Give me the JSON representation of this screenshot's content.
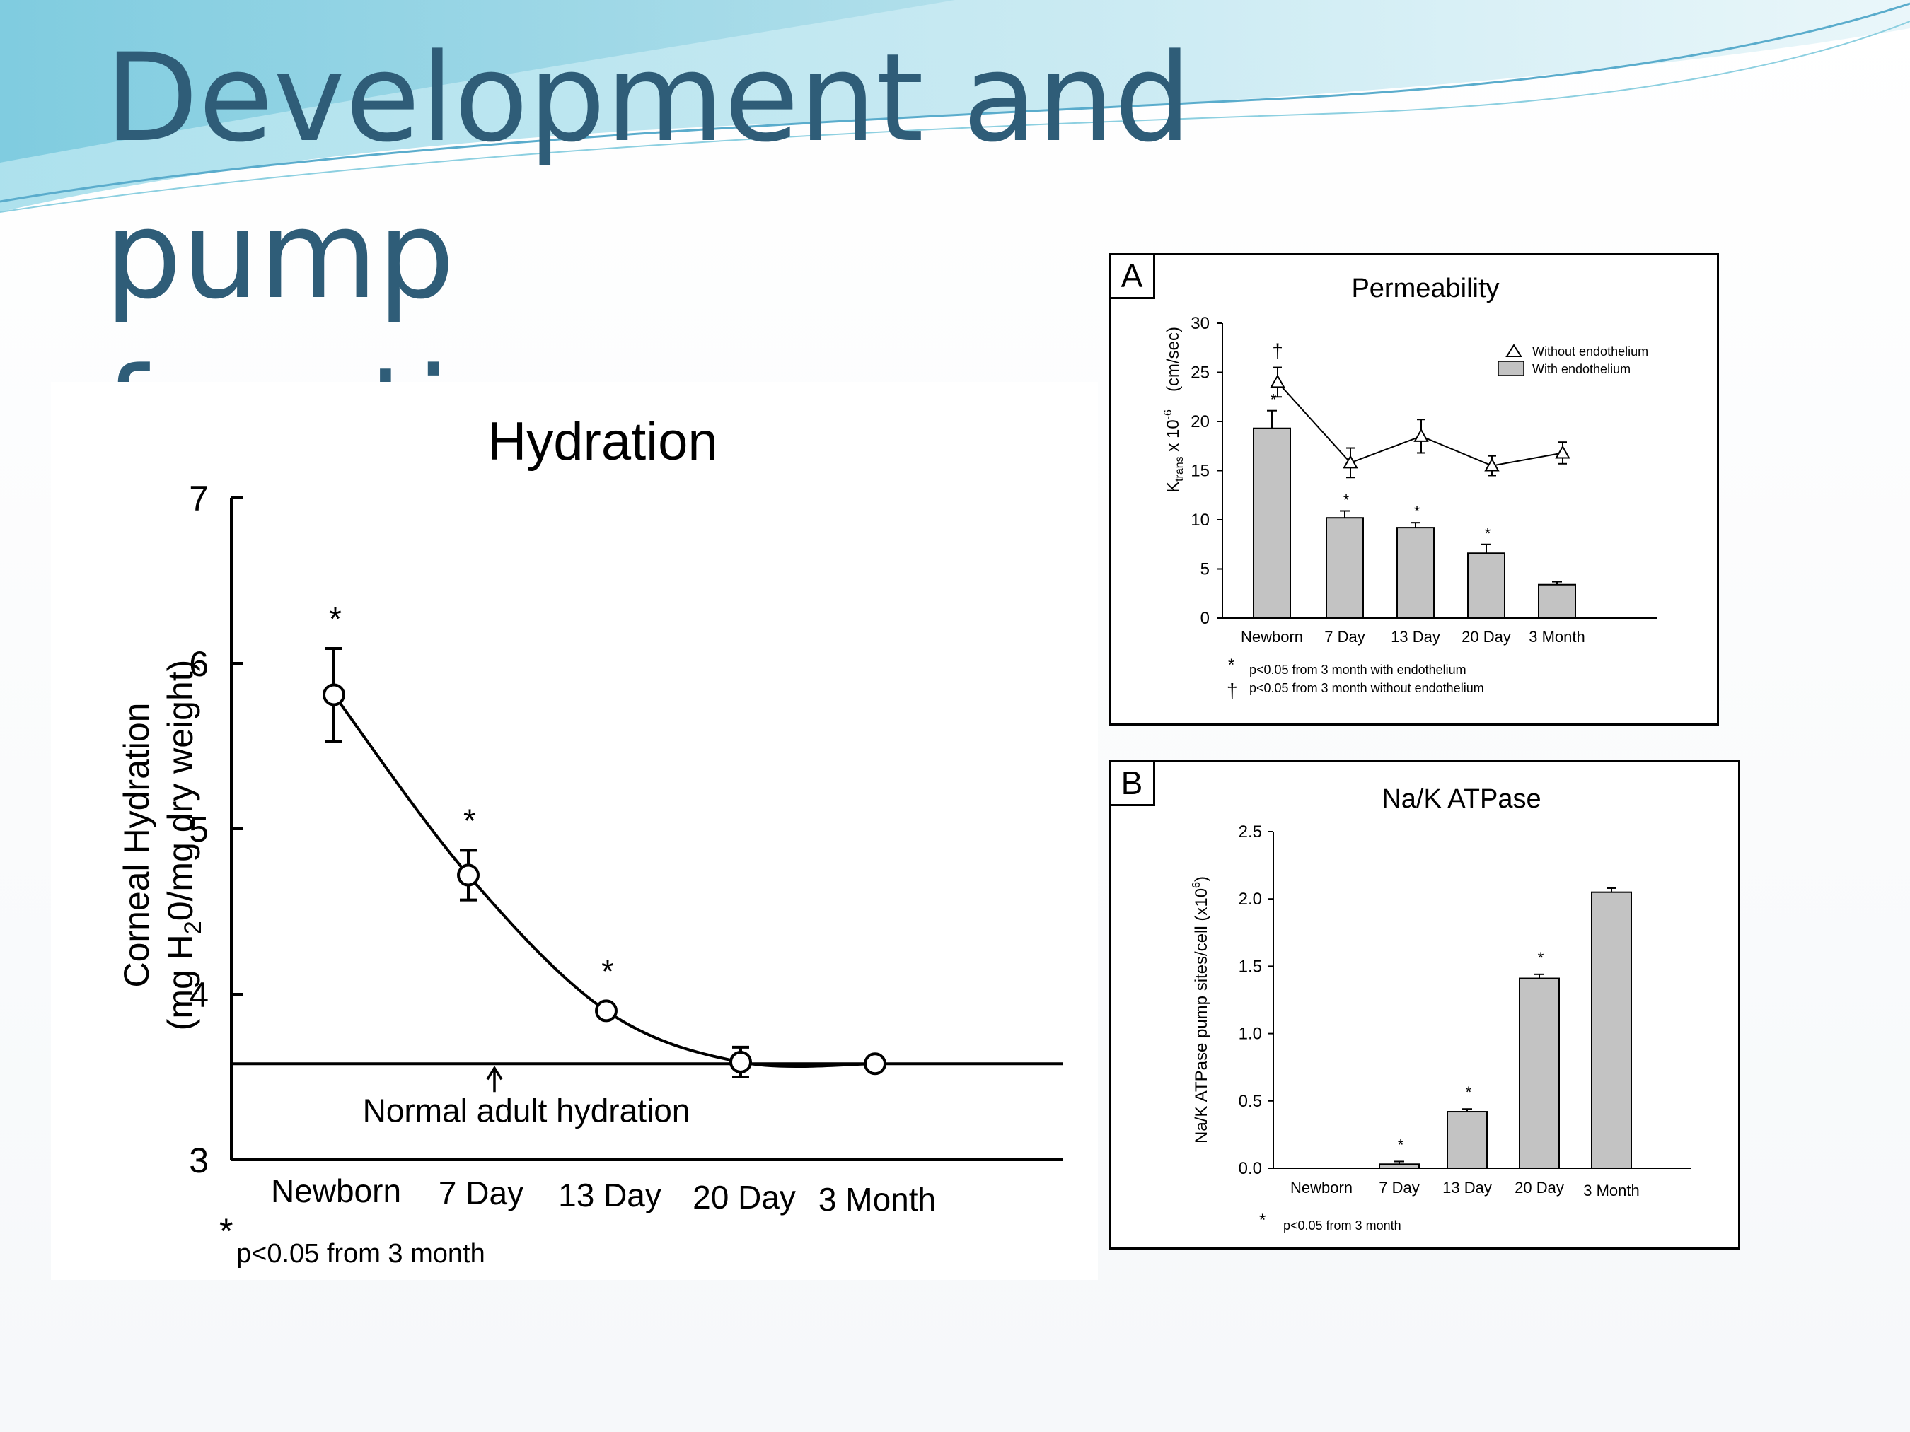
{
  "slide": {
    "title_line1": "Development and pump",
    "title_line2": "function",
    "colors": {
      "title": "#2f5d78",
      "bar_fill": "#c3c3c3",
      "deco_light": "#bfe6f0",
      "deco_dark": "#5aaccc"
    }
  },
  "chart_data": [
    {
      "type": "line",
      "title": "Hydration",
      "ylabel_line1": "Corneal Hydration",
      "ylabel_line2_pre": "(mg H",
      "ylabel_line2_sub": "2",
      "ylabel_line2_post": "0/mg dry weight)",
      "categories": [
        "Newborn",
        "7 Day",
        "13 Day",
        "20 Day",
        "3 Month"
      ],
      "values": [
        5.81,
        4.72,
        3.9,
        3.59,
        3.58
      ],
      "errors": [
        0.28,
        0.15,
        0,
        0.09,
        0
      ],
      "significant": [
        "*",
        "*",
        "*",
        "",
        ""
      ],
      "ylim": [
        3,
        7
      ],
      "yticks": [
        "3",
        "4",
        "5",
        "6",
        "7"
      ],
      "reference_value": 3.58,
      "reference_label": "Normal adult hydration",
      "footnote_symbol": "*",
      "footnote_text": "p<0.05 from 3 month"
    },
    {
      "type": "bar",
      "panel_label": "A",
      "title": "Permeability",
      "ylabel_main": "K",
      "ylabel_sub": "trans",
      "ylabel_mid": " x 10",
      "ylabel_sup": "-6",
      "ylabel_unit": "(cm/sec)",
      "categories": [
        "Newborn",
        "7 Day",
        "13 Day",
        "20 Day",
        "3 Month"
      ],
      "ylim": [
        0,
        30
      ],
      "yticks": [
        "0",
        "5",
        "10",
        "15",
        "20",
        "25",
        "30"
      ],
      "series": [
        {
          "name": "Without endothelium",
          "kind": "line",
          "values": [
            24,
            15.8,
            18.5,
            15.5,
            16.8
          ],
          "errors": [
            1.5,
            1.5,
            1.7,
            1.0,
            1.1
          ],
          "markers": [
            "†",
            "",
            "",
            "",
            ""
          ]
        },
        {
          "name": "With endothelium",
          "kind": "bar",
          "values": [
            19.3,
            10.2,
            9.2,
            6.6,
            3.4
          ],
          "errors": [
            1.8,
            0.7,
            0.5,
            0.9,
            0.3
          ],
          "markers": [
            "*",
            "*",
            "*",
            "*",
            ""
          ]
        }
      ],
      "legend_position": "top-right",
      "footnotes": [
        {
          "symbol": "*",
          "text": "p<0.05 from 3 month with endothelium"
        },
        {
          "symbol": "†",
          "text": "p<0.05 from 3 month without endothelium"
        }
      ]
    },
    {
      "type": "bar",
      "panel_label": "B",
      "title": "Na/K ATPase",
      "ylabel_main": "Na/K  ATPase pump sites/cell  (x10",
      "ylabel_sup": "6",
      "ylabel_end": ")",
      "categories": [
        "Newborn",
        "7 Day",
        "13 Day",
        "20 Day",
        "3 Month"
      ],
      "values": [
        0,
        0.03,
        0.42,
        1.41,
        2.05
      ],
      "errors": [
        0,
        0.02,
        0.02,
        0.03,
        0.03
      ],
      "significant": [
        "",
        "*",
        "*",
        "*",
        ""
      ],
      "ylim": [
        0,
        2.5
      ],
      "yticks": [
        "0.0",
        "0.5",
        "1.0",
        "1.5",
        "2.0",
        "2.5"
      ],
      "footnote_symbol": "*",
      "footnote_text": "p<0.05 from 3 month"
    }
  ]
}
